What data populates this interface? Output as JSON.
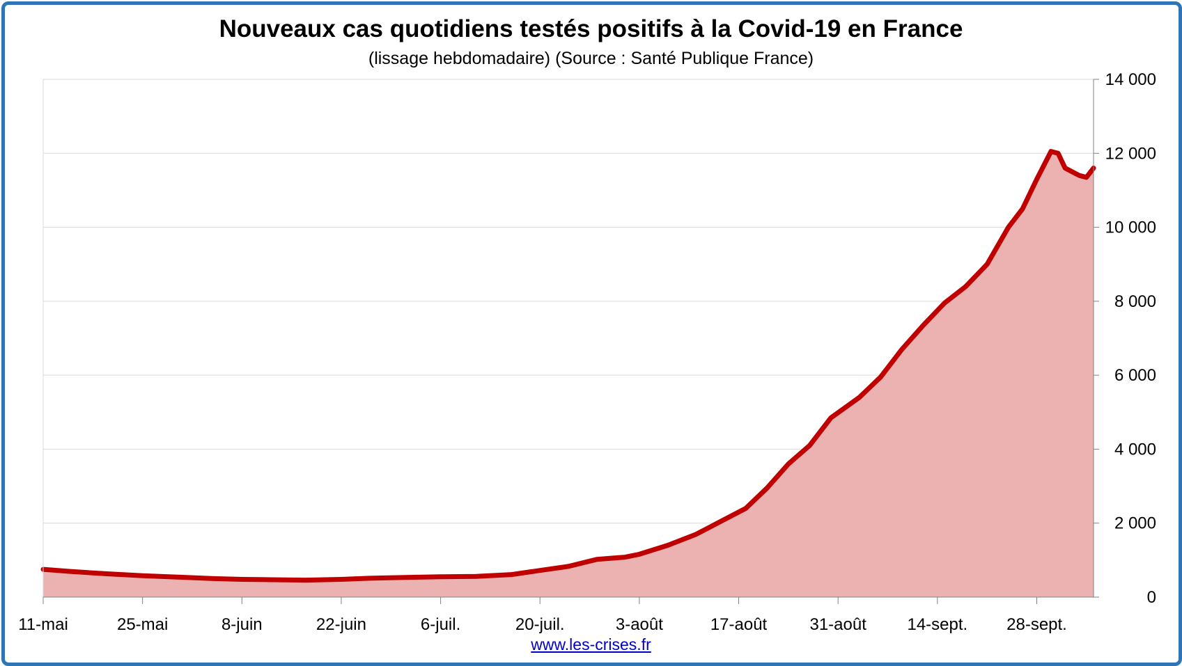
{
  "chart_data": {
    "type": "area",
    "title": "Nouveaux cas quotidiens testés positifs à la Covid-19 en France",
    "subtitle": "(lissage hebdomadaire) (Source : Santé Publique France)",
    "credit": "www.les-crises.fr",
    "xlabel": "",
    "ylabel": "",
    "x_start": "2020-05-11",
    "x_end": "2020-10-05",
    "ylim": [
      0,
      14000
    ],
    "y_axis_side": "right",
    "grid": true,
    "legend": "none",
    "colors": {
      "line": "#c00000",
      "fill": "#ecb1b1",
      "frame": "#2e75b6",
      "grid": "#d9d9d9",
      "credit": "#0000cc"
    },
    "y_ticks": [
      {
        "value": 0,
        "label": "0"
      },
      {
        "value": 2000,
        "label": "2 000"
      },
      {
        "value": 4000,
        "label": "4 000"
      },
      {
        "value": 6000,
        "label": "6 000"
      },
      {
        "value": 8000,
        "label": "8 000"
      },
      {
        "value": 10000,
        "label": "10 000"
      },
      {
        "value": 12000,
        "label": "12 000"
      },
      {
        "value": 14000,
        "label": "14 000"
      }
    ],
    "x_ticks": [
      {
        "x": "2020-05-11",
        "label": "11-mai"
      },
      {
        "x": "2020-05-25",
        "label": "25-mai"
      },
      {
        "x": "2020-06-08",
        "label": "8-juin"
      },
      {
        "x": "2020-06-22",
        "label": "22-juin"
      },
      {
        "x": "2020-07-06",
        "label": "6-juil."
      },
      {
        "x": "2020-07-20",
        "label": "20-juil."
      },
      {
        "x": "2020-08-03",
        "label": "3-août"
      },
      {
        "x": "2020-08-17",
        "label": "17-août"
      },
      {
        "x": "2020-08-31",
        "label": "31-août"
      },
      {
        "x": "2020-09-14",
        "label": "14-sept."
      },
      {
        "x": "2020-09-28",
        "label": "28-sept."
      }
    ],
    "series": [
      {
        "points": [
          [
            "2020-05-11",
            750
          ],
          [
            "2020-05-15",
            690
          ],
          [
            "2020-05-20",
            630
          ],
          [
            "2020-05-25",
            580
          ],
          [
            "2020-05-30",
            540
          ],
          [
            "2020-06-04",
            500
          ],
          [
            "2020-06-08",
            480
          ],
          [
            "2020-06-12",
            470
          ],
          [
            "2020-06-17",
            460
          ],
          [
            "2020-06-22",
            480
          ],
          [
            "2020-06-26",
            510
          ],
          [
            "2020-07-01",
            530
          ],
          [
            "2020-07-06",
            550
          ],
          [
            "2020-07-11",
            560
          ],
          [
            "2020-07-16",
            610
          ],
          [
            "2020-07-20",
            720
          ],
          [
            "2020-07-24",
            830
          ],
          [
            "2020-07-28",
            1020
          ],
          [
            "2020-08-01",
            1080
          ],
          [
            "2020-08-03",
            1160
          ],
          [
            "2020-08-07",
            1400
          ],
          [
            "2020-08-11",
            1700
          ],
          [
            "2020-08-15",
            2100
          ],
          [
            "2020-08-18",
            2400
          ],
          [
            "2020-08-21",
            2950
          ],
          [
            "2020-08-24",
            3600
          ],
          [
            "2020-08-27",
            4100
          ],
          [
            "2020-08-30",
            4850
          ],
          [
            "2020-09-03",
            5400
          ],
          [
            "2020-09-06",
            5950
          ],
          [
            "2020-09-09",
            6700
          ],
          [
            "2020-09-12",
            7350
          ],
          [
            "2020-09-15",
            7950
          ],
          [
            "2020-09-18",
            8400
          ],
          [
            "2020-09-21",
            9000
          ],
          [
            "2020-09-24",
            10000
          ],
          [
            "2020-09-26",
            10500
          ],
          [
            "2020-09-28",
            11300
          ],
          [
            "2020-09-30",
            12050
          ],
          [
            "2020-10-01",
            12000
          ],
          [
            "2020-10-02",
            11600
          ],
          [
            "2020-10-03",
            11500
          ],
          [
            "2020-10-04",
            11400
          ],
          [
            "2020-10-05",
            11350
          ],
          [
            "2020-10-06",
            11600
          ]
        ]
      }
    ]
  }
}
